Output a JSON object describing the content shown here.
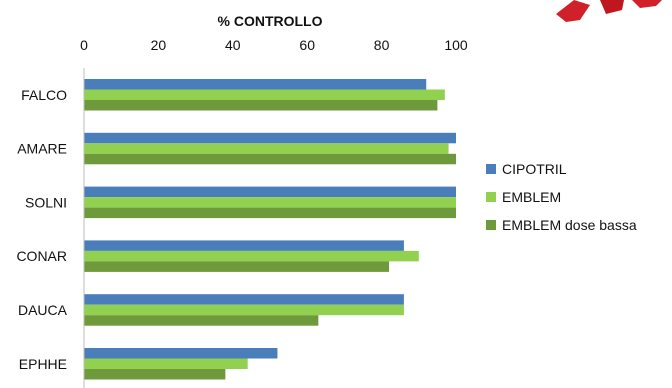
{
  "chart_data": {
    "type": "bar",
    "orientation": "horizontal",
    "title": "% CONTROLLO",
    "xlabel": "",
    "ylabel": "",
    "xlim": [
      0,
      100
    ],
    "x_ticks": [
      "0",
      "20",
      "40",
      "60",
      "80",
      "100"
    ],
    "grid": false,
    "legend_position": "right",
    "categories": [
      "FALCO",
      "AMARE",
      "SOLNI",
      "CONAR",
      "DAUCA",
      "EPHHE"
    ],
    "series": [
      {
        "name": "CIPOTRIL",
        "color": "#4a7ebb",
        "values": [
          92,
          100,
          100,
          86,
          86,
          52
        ]
      },
      {
        "name": "EMBLEM",
        "color": "#92d050",
        "values": [
          97,
          98,
          100,
          90,
          86,
          44
        ]
      },
      {
        "name": "EMBLEM dose bassa",
        "color": "#6f9a3c",
        "values": [
          95,
          100,
          100,
          82,
          63,
          38
        ]
      }
    ]
  },
  "decoration": {
    "corner_logo": "red-logo-fragment",
    "logo_color": "#d0202a"
  }
}
